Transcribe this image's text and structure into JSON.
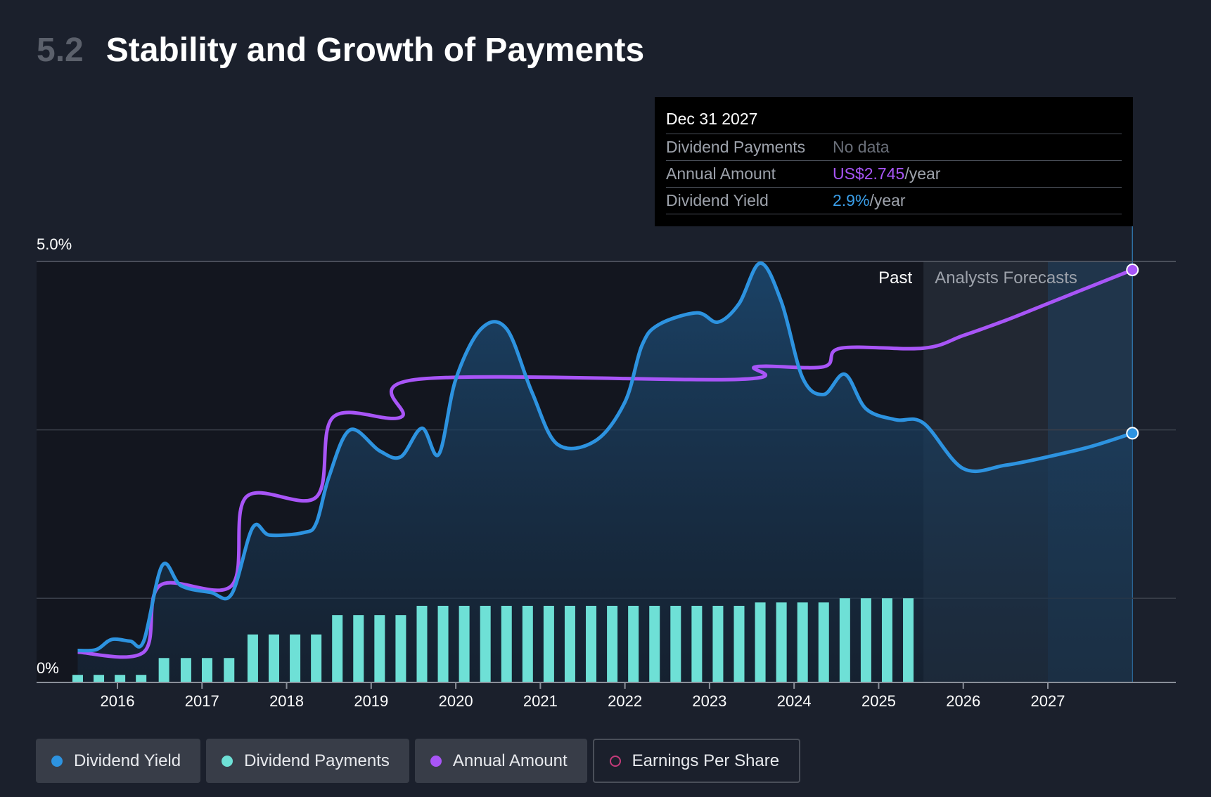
{
  "header": {
    "section_number": "5.2",
    "title": "Stability and Growth of Payments"
  },
  "tooltip": {
    "date": "Dec 31 2027",
    "rows": [
      {
        "label": "Dividend Payments",
        "value": "No data",
        "unit": ""
      },
      {
        "label": "Annual Amount",
        "value": "US$2.745",
        "unit": "/year"
      },
      {
        "label": "Dividend Yield",
        "value": "2.9%",
        "unit": "/year"
      }
    ]
  },
  "legend": {
    "items": [
      {
        "label": "Dividend Yield",
        "color": "#2d93e0"
      },
      {
        "label": "Dividend Payments",
        "color": "#6ee0d6"
      },
      {
        "label": "Annual Amount",
        "color": "#a855f7"
      },
      {
        "label": "Earnings Per Share",
        "color": "#c43b7a"
      }
    ]
  },
  "chart_data": {
    "type": "line",
    "y_axis_labels": [
      "5.0%",
      "0%"
    ],
    "ylim": [
      0,
      5.0
    ],
    "x_ticks": [
      "2016",
      "2017",
      "2018",
      "2019",
      "2020",
      "2021",
      "2022",
      "2023",
      "2024",
      "2025",
      "2026",
      "2027"
    ],
    "xlim": [
      2015.5,
      2028.0
    ],
    "region_labels": {
      "past": "Past",
      "forecast": "Analysts Forecasts"
    },
    "forecast_start": 2025.53,
    "series": [
      {
        "name": "Dividend Yield",
        "color": "#2d93e0",
        "points": [
          [
            2015.53,
            0.38
          ],
          [
            2015.75,
            0.39
          ],
          [
            2015.93,
            0.51
          ],
          [
            2016.15,
            0.49
          ],
          [
            2016.31,
            0.49
          ],
          [
            2016.53,
            1.39
          ],
          [
            2016.75,
            1.15
          ],
          [
            2017.1,
            1.07
          ],
          [
            2017.35,
            1.05
          ],
          [
            2017.6,
            1.84
          ],
          [
            2017.8,
            1.75
          ],
          [
            2018.2,
            1.78
          ],
          [
            2018.35,
            1.89
          ],
          [
            2018.5,
            2.44
          ],
          [
            2018.75,
            3.0
          ],
          [
            2019.1,
            2.75
          ],
          [
            2019.35,
            2.68
          ],
          [
            2019.6,
            3.02
          ],
          [
            2019.8,
            2.71
          ],
          [
            2020.0,
            3.6
          ],
          [
            2020.3,
            4.2
          ],
          [
            2020.6,
            4.2
          ],
          [
            2020.9,
            3.45
          ],
          [
            2021.2,
            2.83
          ],
          [
            2021.65,
            2.87
          ],
          [
            2022.0,
            3.33
          ],
          [
            2022.2,
            4.0
          ],
          [
            2022.4,
            4.25
          ],
          [
            2022.85,
            4.39
          ],
          [
            2023.1,
            4.28
          ],
          [
            2023.35,
            4.5
          ],
          [
            2023.6,
            4.98
          ],
          [
            2023.85,
            4.52
          ],
          [
            2024.1,
            3.62
          ],
          [
            2024.35,
            3.42
          ],
          [
            2024.6,
            3.66
          ],
          [
            2024.85,
            3.25
          ],
          [
            2025.2,
            3.12
          ],
          [
            2025.53,
            3.08
          ],
          [
            2026.0,
            2.54
          ],
          [
            2026.5,
            2.58
          ],
          [
            2027.0,
            2.68
          ],
          [
            2027.5,
            2.8
          ],
          [
            2028.0,
            2.96
          ]
        ]
      },
      {
        "name": "Annual Amount",
        "color": "#a855f7",
        "points": [
          [
            2015.53,
            0.36
          ],
          [
            2016.31,
            0.36
          ],
          [
            2016.5,
            1.15
          ],
          [
            2017.35,
            1.15
          ],
          [
            2017.52,
            2.2
          ],
          [
            2018.35,
            2.2
          ],
          [
            2018.55,
            3.15
          ],
          [
            2019.35,
            3.15
          ],
          [
            2019.55,
            3.6
          ],
          [
            2023.35,
            3.6
          ],
          [
            2023.55,
            3.75
          ],
          [
            2024.35,
            3.75
          ],
          [
            2024.55,
            3.97
          ],
          [
            2025.53,
            3.97
          ],
          [
            2026.0,
            4.12
          ],
          [
            2026.5,
            4.3
          ],
          [
            2027.0,
            4.5
          ],
          [
            2027.5,
            4.7
          ],
          [
            2028.0,
            4.9
          ]
        ]
      },
      {
        "name": "Dividend Payments",
        "color": "#6ee0d6",
        "x": [
          2015.53,
          2015.78,
          2016.03,
          2016.28,
          2016.55,
          2016.81,
          2017.06,
          2017.32,
          2017.6,
          2017.85,
          2018.1,
          2018.35,
          2018.6,
          2018.85,
          2019.1,
          2019.35,
          2019.6,
          2019.85,
          2020.1,
          2020.35,
          2020.6,
          2020.85,
          2021.1,
          2021.35,
          2021.6,
          2021.85,
          2022.1,
          2022.35,
          2022.6,
          2022.85,
          2023.1,
          2023.35,
          2023.6,
          2023.85,
          2024.1,
          2024.35,
          2024.6,
          2024.85,
          2025.1,
          2025.35
        ],
        "values": [
          0.09,
          0.09,
          0.09,
          0.09,
          0.29,
          0.29,
          0.29,
          0.29,
          0.57,
          0.57,
          0.57,
          0.57,
          0.8,
          0.8,
          0.8,
          0.8,
          0.91,
          0.91,
          0.91,
          0.91,
          0.91,
          0.91,
          0.91,
          0.91,
          0.91,
          0.91,
          0.91,
          0.91,
          0.91,
          0.91,
          0.91,
          0.91,
          0.95,
          0.95,
          0.95,
          0.95,
          1.0,
          1.0,
          1.0,
          1.0
        ]
      }
    ]
  }
}
